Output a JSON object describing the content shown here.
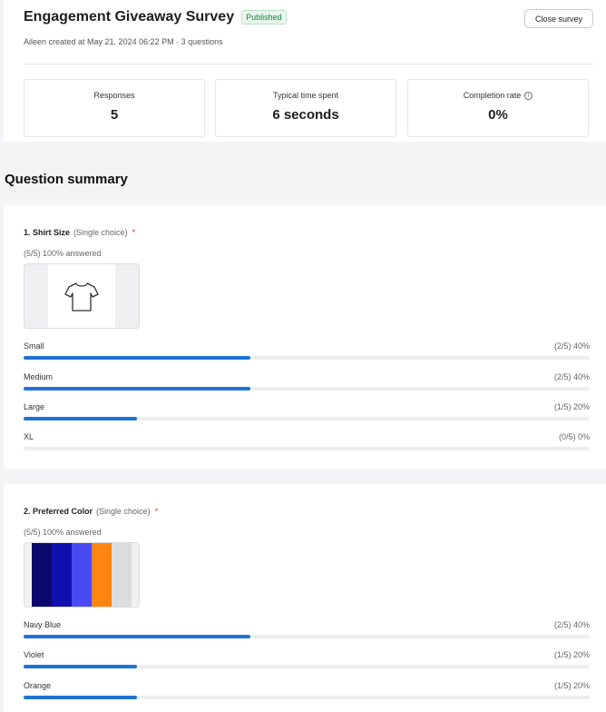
{
  "survey": {
    "title": "Engagement Giveaway Survey",
    "status": "Published",
    "close_label": "Close survey",
    "meta": "Aileen created at May 21, 2024 06:22 PM  ·  3 questions"
  },
  "stats": [
    {
      "label": "Responses",
      "value": "5"
    },
    {
      "label": "Typical time spent",
      "value": "6 seconds"
    },
    {
      "label": "Completion rate",
      "value": "0%",
      "icon": "info-icon"
    }
  ],
  "summary_title": "Question summary",
  "questions": [
    {
      "title": "1. Shirt Size",
      "type": "(Single choice)",
      "required": "*",
      "answered": "(5/5) 100% answered",
      "image": "t-shirt-icon",
      "options": [
        {
          "label": "Small",
          "stat": "(2/5) 40%",
          "fraction": 0.4
        },
        {
          "label": "Medium",
          "stat": "(2/5) 40%",
          "fraction": 0.4
        },
        {
          "label": "Large",
          "stat": "(1/5) 20%",
          "fraction": 0.2
        },
        {
          "label": "XL",
          "stat": "(0/5) 0%",
          "fraction": 0
        }
      ]
    },
    {
      "title": "2. Preferred Color",
      "type": "(Single choice)",
      "required": "*",
      "answered": "(5/5) 100% answered",
      "swatches": [
        "#0a0a6e",
        "#1010b0",
        "#4a4af5",
        "#ff8410",
        "#dcdcdc"
      ],
      "options": [
        {
          "label": "Navy Blue",
          "stat": "(2/5) 40%",
          "fraction": 0.4
        },
        {
          "label": "Violet",
          "stat": "(1/5) 20%",
          "fraction": 0.2
        },
        {
          "label": "Orange",
          "stat": "(1/5) 20%",
          "fraction": 0.2
        }
      ]
    }
  ],
  "colors": {
    "accent": "#1f73d6",
    "published_green": "#1a7f37",
    "required_red": "#d32f2f"
  }
}
